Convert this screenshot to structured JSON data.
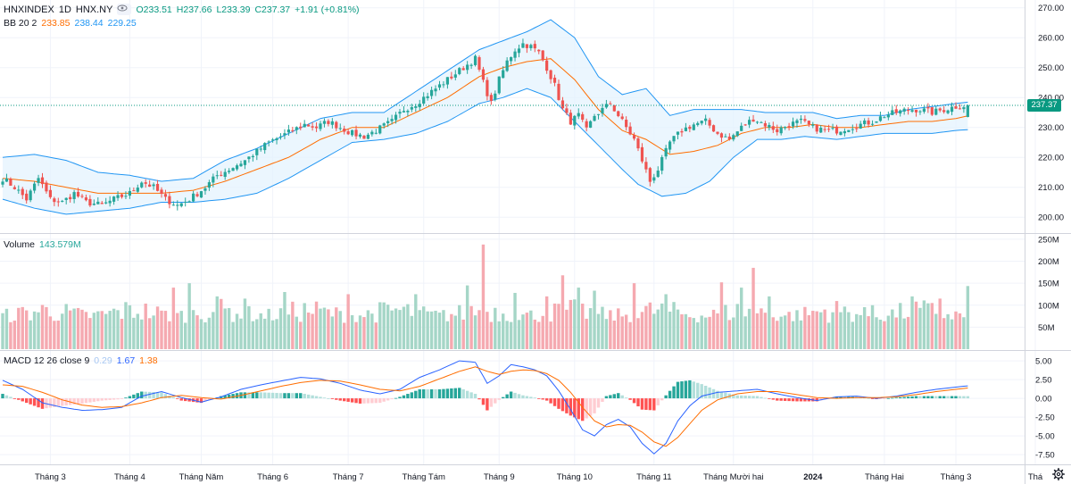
{
  "header": {
    "symbol": "HNXINDEX",
    "interval": "1D",
    "exchange": "HNX.NY",
    "open": "O233.51",
    "high": "H237.66",
    "low": "L233.39",
    "close": "C237.37",
    "change": "+1.91 (+0.81%)"
  },
  "indicators": {
    "bb": {
      "label": "BB 20 2",
      "basis": "233.85",
      "upper": "238.44",
      "lower": "229.25"
    },
    "volume": {
      "label": "Volume",
      "value": "143.579M"
    },
    "macd": {
      "label": "MACD 12 26 close 9",
      "hist": "0.29",
      "macd": "1.67",
      "signal": "1.38"
    }
  },
  "last_price_tag": "237.37",
  "colors": {
    "up": "#26a69a",
    "down": "#ef5350",
    "bb_basis": "#ff6d00",
    "bb_band": "#2196f3",
    "bb_fill": "#e3f2fd",
    "macd_line": "#2962ff",
    "signal_line": "#ff6d00",
    "vol_up": "#a5d6c7",
    "vol_down": "#f5a9b0",
    "grid": "#f0f3fa",
    "last": "#089981"
  },
  "chart_data": [
    {
      "type": "candlestick",
      "title": "HNXINDEX 1D",
      "ylim": [
        195,
        272
      ],
      "yticks": [
        "200.00",
        "210.00",
        "220.00",
        "230.00",
        "240.00",
        "250.00",
        "260.00",
        "270.00"
      ],
      "ytick_values": [
        200,
        210,
        220,
        230,
        240,
        250,
        260,
        270
      ],
      "x_labels": [
        "Tháng 3",
        "Tháng 4",
        "Tháng Năm",
        "Tháng 6",
        "Tháng 7",
        "Tháng Tám",
        "Tháng 9",
        "Tháng 10",
        "Tháng 11",
        "Tháng Mười hai",
        "2024",
        "Tháng Hai",
        "Tháng 3",
        "Thá"
      ],
      "x_label_index": [
        12,
        32,
        50,
        68,
        87,
        106,
        125,
        144,
        164,
        184,
        204,
        222,
        240,
        260
      ],
      "bars_count": 244,
      "close_anchors": [
        [
          0,
          213
        ],
        [
          3,
          210
        ],
        [
          6,
          206
        ],
        [
          9,
          213
        ],
        [
          12,
          206
        ],
        [
          15,
          205
        ],
        [
          18,
          208
        ],
        [
          21,
          205
        ],
        [
          25,
          204
        ],
        [
          28,
          206
        ],
        [
          32,
          208
        ],
        [
          35,
          212
        ],
        [
          38,
          210
        ],
        [
          41,
          206
        ],
        [
          44,
          204
        ],
        [
          47,
          206
        ],
        [
          51,
          210
        ],
        [
          54,
          214
        ],
        [
          57,
          216
        ],
        [
          61,
          219
        ],
        [
          64,
          222
        ],
        [
          67,
          225
        ],
        [
          70,
          227
        ],
        [
          73,
          229
        ],
        [
          76,
          231
        ],
        [
          79,
          230
        ],
        [
          82,
          232
        ],
        [
          85,
          230
        ],
        [
          88,
          228
        ],
        [
          91,
          227
        ],
        [
          94,
          229
        ],
        [
          98,
          232
        ],
        [
          101,
          236
        ],
        [
          104,
          238
        ],
        [
          107,
          241
        ],
        [
          110,
          244
        ],
        [
          113,
          247
        ],
        [
          116,
          250
        ],
        [
          119,
          253
        ],
        [
          121,
          245
        ],
        [
          123,
          238
        ],
        [
          125,
          246
        ],
        [
          127,
          252
        ],
        [
          129,
          256
        ],
        [
          131,
          258
        ],
        [
          133,
          257
        ],
        [
          135,
          255
        ],
        [
          137,
          250
        ],
        [
          139,
          244
        ],
        [
          141,
          236
        ],
        [
          143,
          232
        ],
        [
          145,
          234
        ],
        [
          147,
          229
        ],
        [
          149,
          234
        ],
        [
          151,
          236
        ],
        [
          153,
          238
        ],
        [
          155,
          234
        ],
        [
          157,
          230
        ],
        [
          159,
          226
        ],
        [
          161,
          219
        ],
        [
          163,
          212
        ],
        [
          165,
          216
        ],
        [
          168,
          225
        ],
        [
          171,
          229
        ],
        [
          174,
          231
        ],
        [
          177,
          232
        ],
        [
          180,
          228
        ],
        [
          183,
          226
        ],
        [
          186,
          230
        ],
        [
          189,
          233
        ],
        [
          192,
          231
        ],
        [
          195,
          229
        ],
        [
          198,
          231
        ],
        [
          201,
          232
        ],
        [
          204,
          230
        ],
        [
          207,
          229
        ],
        [
          210,
          229
        ],
        [
          213,
          230
        ],
        [
          216,
          231
        ],
        [
          219,
          232
        ],
        [
          222,
          234
        ],
        [
          225,
          235
        ],
        [
          228,
          236
        ],
        [
          231,
          236
        ],
        [
          234,
          235
        ],
        [
          237,
          236
        ],
        [
          240,
          237
        ],
        [
          243,
          237.37
        ]
      ],
      "bb_upper_anchors": [
        [
          0,
          220
        ],
        [
          8,
          221
        ],
        [
          16,
          219
        ],
        [
          24,
          215
        ],
        [
          32,
          214
        ],
        [
          40,
          212
        ],
        [
          48,
          213
        ],
        [
          56,
          219
        ],
        [
          64,
          223
        ],
        [
          72,
          228
        ],
        [
          80,
          233
        ],
        [
          88,
          235
        ],
        [
          96,
          235
        ],
        [
          104,
          242
        ],
        [
          112,
          249
        ],
        [
          120,
          256
        ],
        [
          126,
          259
        ],
        [
          132,
          262
        ],
        [
          138,
          266
        ],
        [
          144,
          260
        ],
        [
          150,
          247
        ],
        [
          156,
          241
        ],
        [
          162,
          243
        ],
        [
          168,
          234
        ],
        [
          174,
          236
        ],
        [
          180,
          236
        ],
        [
          186,
          236
        ],
        [
          192,
          235
        ],
        [
          198,
          235
        ],
        [
          204,
          235
        ],
        [
          210,
          233
        ],
        [
          216,
          234
        ],
        [
          222,
          234
        ],
        [
          228,
          236
        ],
        [
          234,
          237
        ],
        [
          240,
          238
        ],
        [
          243,
          238.44
        ]
      ],
      "bb_lower_anchors": [
        [
          0,
          206
        ],
        [
          8,
          203
        ],
        [
          16,
          201
        ],
        [
          24,
          202
        ],
        [
          32,
          203
        ],
        [
          40,
          205
        ],
        [
          48,
          205
        ],
        [
          56,
          206
        ],
        [
          64,
          208
        ],
        [
          72,
          213
        ],
        [
          80,
          219
        ],
        [
          88,
          225
        ],
        [
          96,
          226
        ],
        [
          104,
          228
        ],
        [
          112,
          232
        ],
        [
          120,
          238
        ],
        [
          126,
          240
        ],
        [
          132,
          243
        ],
        [
          138,
          240
        ],
        [
          144,
          232
        ],
        [
          150,
          224
        ],
        [
          156,
          216
        ],
        [
          160,
          211
        ],
        [
          166,
          207
        ],
        [
          172,
          208
        ],
        [
          178,
          212
        ],
        [
          184,
          220
        ],
        [
          190,
          226
        ],
        [
          196,
          226
        ],
        [
          202,
          227
        ],
        [
          210,
          226
        ],
        [
          216,
          227
        ],
        [
          222,
          228
        ],
        [
          228,
          228
        ],
        [
          234,
          228
        ],
        [
          240,
          229
        ],
        [
          243,
          229.25
        ]
      ],
      "bb_basis_anchors": [
        [
          0,
          213
        ],
        [
          8,
          212
        ],
        [
          16,
          210
        ],
        [
          24,
          208
        ],
        [
          32,
          208
        ],
        [
          40,
          208
        ],
        [
          48,
          209
        ],
        [
          56,
          212
        ],
        [
          64,
          216
        ],
        [
          72,
          220
        ],
        [
          80,
          226
        ],
        [
          88,
          230
        ],
        [
          96,
          230
        ],
        [
          104,
          235
        ],
        [
          112,
          240
        ],
        [
          120,
          247
        ],
        [
          126,
          250
        ],
        [
          132,
          252
        ],
        [
          138,
          253
        ],
        [
          144,
          246
        ],
        [
          150,
          236
        ],
        [
          156,
          229
        ],
        [
          162,
          226
        ],
        [
          168,
          221
        ],
        [
          174,
          222
        ],
        [
          180,
          224
        ],
        [
          186,
          228
        ],
        [
          192,
          230
        ],
        [
          198,
          230
        ],
        [
          204,
          231
        ],
        [
          210,
          230
        ],
        [
          216,
          230
        ],
        [
          222,
          231
        ],
        [
          228,
          232
        ],
        [
          234,
          232
        ],
        [
          240,
          233
        ],
        [
          243,
          233.85
        ]
      ]
    },
    {
      "type": "bar",
      "title": "Volume",
      "ylim": [
        0,
        260
      ],
      "yticks": [
        "50M",
        "100M",
        "150M",
        "200M",
        "250M"
      ],
      "ytick_values": [
        50,
        100,
        150,
        200,
        250
      ],
      "spikes": [
        [
          43,
          140
        ],
        [
          47,
          150
        ],
        [
          54,
          120
        ],
        [
          61,
          115
        ],
        [
          71,
          130
        ],
        [
          87,
          125
        ],
        [
          104,
          125
        ],
        [
          117,
          145
        ],
        [
          121,
          238
        ],
        [
          129,
          128
        ],
        [
          137,
          120
        ],
        [
          141,
          168
        ],
        [
          145,
          140
        ],
        [
          149,
          133
        ],
        [
          159,
          150
        ],
        [
          167,
          125
        ],
        [
          181,
          152
        ],
        [
          186,
          140
        ],
        [
          189,
          185
        ],
        [
          193,
          120
        ],
        [
          219,
          100
        ],
        [
          229,
          120
        ],
        [
          236,
          115
        ],
        [
          243,
          143.579
        ]
      ],
      "base_range": [
        60,
        115
      ]
    },
    {
      "type": "line",
      "title": "MACD 12 26 close 9",
      "ylim": [
        -8.8,
        6.2
      ],
      "yticks": [
        "-7.50",
        "-5.00",
        "-2.50",
        "0.00",
        "2.50",
        "5.00"
      ],
      "ytick_values": [
        -7.5,
        -5,
        -2.5,
        0,
        2.5,
        5
      ],
      "macd_anchors": [
        [
          0,
          2.4
        ],
        [
          5,
          1.2
        ],
        [
          10,
          -0.6
        ],
        [
          15,
          -1.2
        ],
        [
          20,
          -1.6
        ],
        [
          25,
          -1.5
        ],
        [
          30,
          -1.2
        ],
        [
          35,
          0.3
        ],
        [
          40,
          0.9
        ],
        [
          45,
          0.1
        ],
        [
          50,
          -0.5
        ],
        [
          55,
          0.2
        ],
        [
          60,
          1.2
        ],
        [
          65,
          1.8
        ],
        [
          70,
          2.3
        ],
        [
          75,
          2.8
        ],
        [
          80,
          2.6
        ],
        [
          85,
          2.0
        ],
        [
          90,
          1.1
        ],
        [
          95,
          0.6
        ],
        [
          100,
          1.2
        ],
        [
          105,
          2.8
        ],
        [
          110,
          3.8
        ],
        [
          115,
          5.0
        ],
        [
          119,
          4.8
        ],
        [
          122,
          2.0
        ],
        [
          125,
          3.0
        ],
        [
          128,
          4.5
        ],
        [
          131,
          4.2
        ],
        [
          134,
          3.8
        ],
        [
          137,
          3.0
        ],
        [
          140,
          1.0
        ],
        [
          143,
          -1.5
        ],
        [
          146,
          -4.2
        ],
        [
          149,
          -5.0
        ],
        [
          152,
          -3.5
        ],
        [
          155,
          -2.8
        ],
        [
          158,
          -3.8
        ],
        [
          161,
          -6.0
        ],
        [
          164,
          -7.4
        ],
        [
          167,
          -6.0
        ],
        [
          170,
          -3.0
        ],
        [
          173,
          -1.0
        ],
        [
          176,
          0.3
        ],
        [
          180,
          0.8
        ],
        [
          185,
          1.0
        ],
        [
          190,
          1.2
        ],
        [
          195,
          0.6
        ],
        [
          200,
          0.1
        ],
        [
          205,
          -0.3
        ],
        [
          210,
          0.2
        ],
        [
          215,
          0.3
        ],
        [
          220,
          0.0
        ],
        [
          225,
          0.3
        ],
        [
          230,
          0.8
        ],
        [
          235,
          1.2
        ],
        [
          240,
          1.5
        ],
        [
          243,
          1.67
        ]
      ],
      "signal_anchors": [
        [
          0,
          1.8
        ],
        [
          5,
          1.6
        ],
        [
          10,
          0.8
        ],
        [
          15,
          -0.2
        ],
        [
          20,
          -0.9
        ],
        [
          25,
          -1.2
        ],
        [
          30,
          -1.1
        ],
        [
          35,
          -0.6
        ],
        [
          40,
          0.1
        ],
        [
          45,
          0.4
        ],
        [
          50,
          0.1
        ],
        [
          55,
          -0.1
        ],
        [
          60,
          0.4
        ],
        [
          65,
          1.0
        ],
        [
          70,
          1.6
        ],
        [
          75,
          2.1
        ],
        [
          80,
          2.4
        ],
        [
          85,
          2.3
        ],
        [
          90,
          1.8
        ],
        [
          95,
          1.2
        ],
        [
          100,
          1.0
        ],
        [
          105,
          1.6
        ],
        [
          110,
          2.6
        ],
        [
          115,
          3.6
        ],
        [
          119,
          4.2
        ],
        [
          122,
          3.6
        ],
        [
          125,
          3.2
        ],
        [
          128,
          3.6
        ],
        [
          131,
          3.8
        ],
        [
          134,
          3.7
        ],
        [
          137,
          3.3
        ],
        [
          140,
          2.4
        ],
        [
          143,
          0.8
        ],
        [
          146,
          -1.2
        ],
        [
          149,
          -3.0
        ],
        [
          152,
          -3.8
        ],
        [
          155,
          -3.5
        ],
        [
          158,
          -3.6
        ],
        [
          161,
          -4.5
        ],
        [
          164,
          -5.8
        ],
        [
          167,
          -6.4
        ],
        [
          170,
          -5.2
        ],
        [
          173,
          -3.4
        ],
        [
          176,
          -1.6
        ],
        [
          180,
          -0.2
        ],
        [
          185,
          0.6
        ],
        [
          190,
          0.9
        ],
        [
          195,
          0.9
        ],
        [
          200,
          0.5
        ],
        [
          205,
          0.1
        ],
        [
          210,
          0.0
        ],
        [
          215,
          0.1
        ],
        [
          220,
          0.1
        ],
        [
          225,
          0.2
        ],
        [
          230,
          0.5
        ],
        [
          235,
          0.9
        ],
        [
          240,
          1.2
        ],
        [
          243,
          1.38
        ]
      ]
    }
  ]
}
